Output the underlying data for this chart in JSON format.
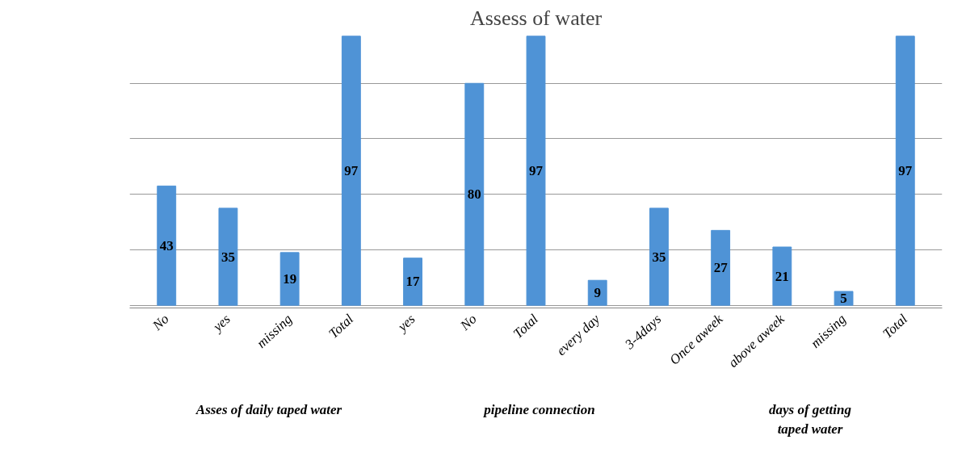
{
  "chart_data": {
    "type": "bar",
    "title": "Assess of water",
    "categories": [
      "No",
      "yes",
      "missing",
      "Total",
      "yes",
      "No",
      "Total",
      "every day",
      "3-4days",
      "Once aweek",
      "above aweek",
      "missing",
      "Total"
    ],
    "values": [
      43,
      35,
      19,
      97,
      17,
      80,
      97,
      9,
      35,
      27,
      21,
      5,
      97
    ],
    "color": "#4f93d6",
    "grid": "y",
    "data_labels": true,
    "tick_labels": "x",
    "annotations": [
      "Asses of daily taped water",
      "pipeline connection",
      "days of getting\ntaped water"
    ]
  }
}
